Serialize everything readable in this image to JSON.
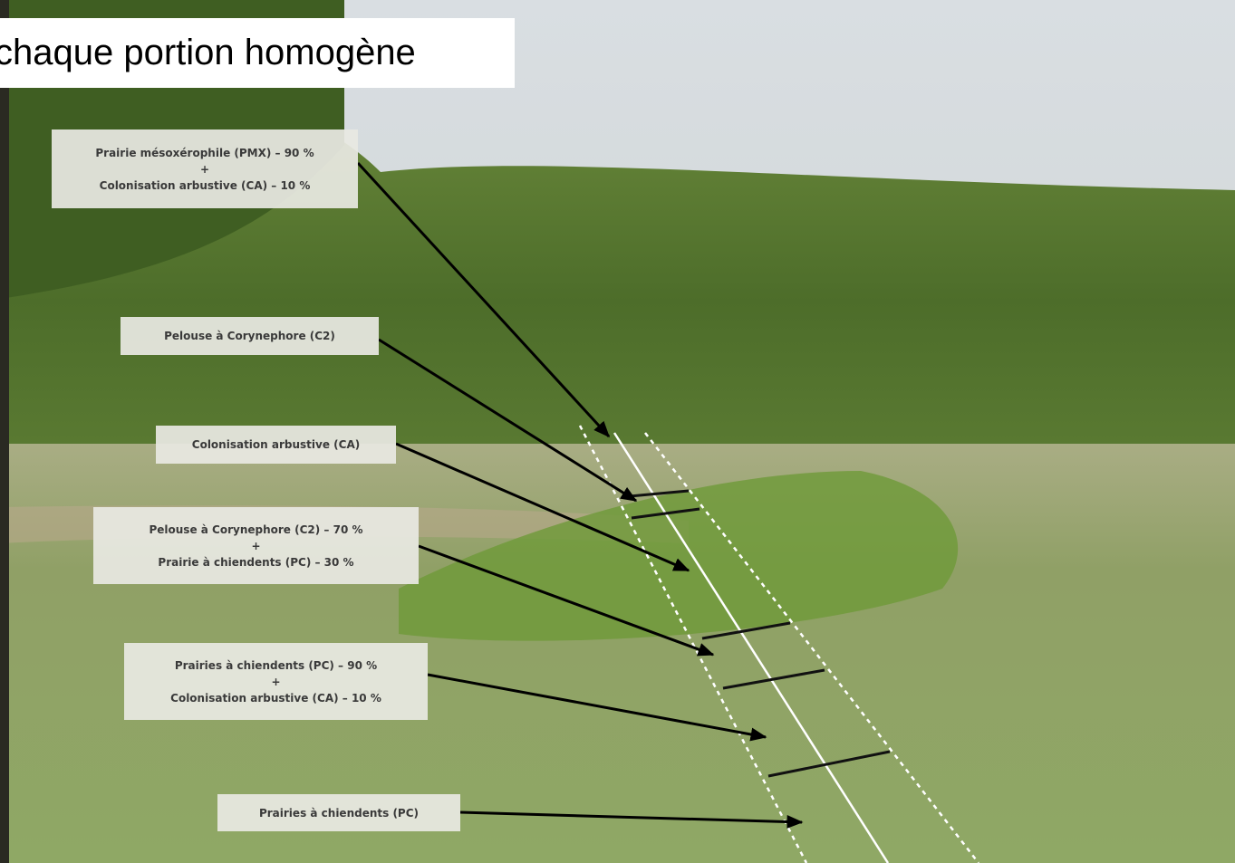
{
  "title": "chaque portion homogène",
  "labels": [
    {
      "lines": [
        "Prairie mésoxérophile (PMX) – 90 %",
        "+",
        "Colonisation arbustive (CA) – 10 %"
      ]
    },
    {
      "lines": [
        "Pelouse à Corynephore (C2)"
      ]
    },
    {
      "lines": [
        "Colonisation arbustive (CA)"
      ]
    },
    {
      "lines": [
        "Pelouse à Corynephore (C2) – 70 %",
        "+",
        "Prairie à chiendents (PC) – 30 %"
      ]
    },
    {
      "lines": [
        "Prairies à chiendents (PC) – 90 %",
        "+",
        "Colonisation arbustive (CA) – 10 %"
      ]
    },
    {
      "lines": [
        "Prairies à chiendents (PC)"
      ]
    }
  ]
}
